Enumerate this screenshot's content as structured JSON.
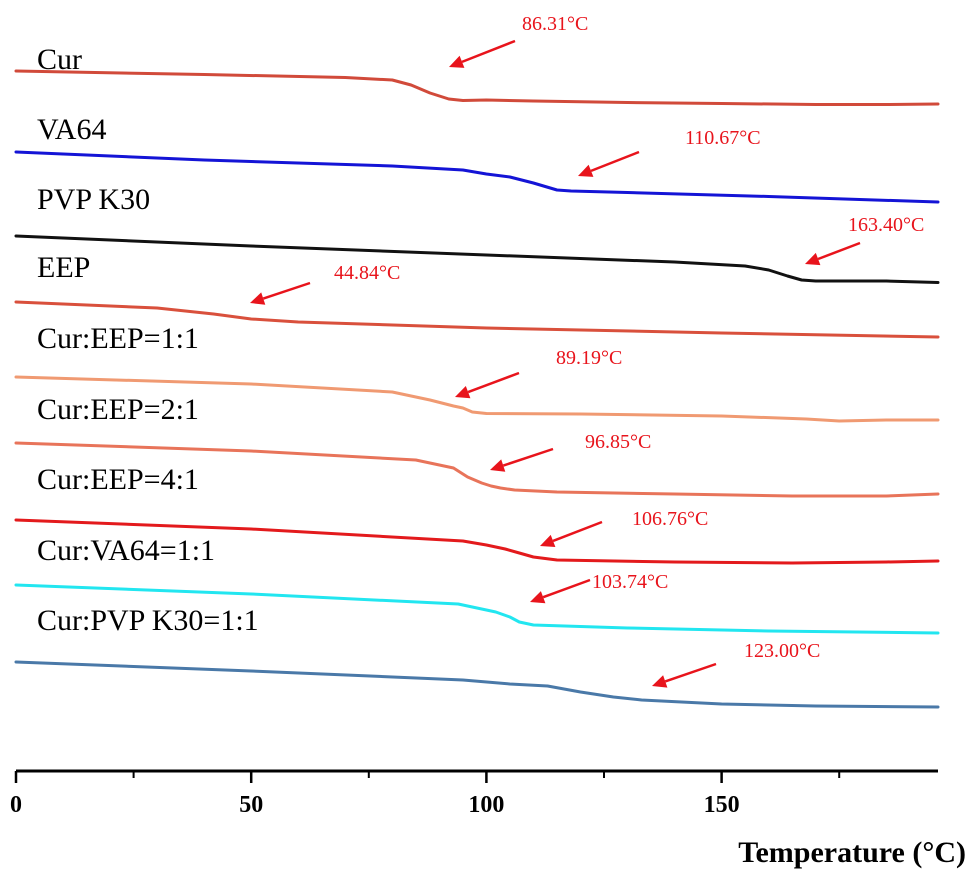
{
  "chart_data": {
    "type": "line",
    "title": "",
    "xlabel": "Temperature (°C)",
    "ylabel": "",
    "xlim": [
      0,
      196
    ],
    "x_ticks": [
      0,
      50,
      100,
      150
    ],
    "x_tick_labels": [
      "0",
      "50",
      "100",
      "150"
    ],
    "x_minor_ticks": [
      25,
      75,
      125,
      175
    ],
    "grid": false,
    "legend": "none",
    "arrow_color": "#e8141c",
    "tg_label_color": "#e8141c",
    "series": [
      {
        "name": "Cur",
        "color": "#d14a3a",
        "tg_label": "86.31°C",
        "points": [
          [
            0,
            71
          ],
          [
            40,
            74.5
          ],
          [
            70,
            77.5
          ],
          [
            80,
            80
          ],
          [
            84,
            85
          ],
          [
            88,
            93
          ],
          [
            92,
            99
          ],
          [
            95,
            100.5
          ],
          [
            100,
            100
          ],
          [
            110,
            101
          ],
          [
            130,
            102.5
          ],
          [
            150,
            103.5
          ],
          [
            170,
            104.5
          ],
          [
            185,
            104.5
          ],
          [
            196,
            104
          ]
        ]
      },
      {
        "name": "VA64",
        "color": "#1414d6",
        "tg_label": "110.67°C",
        "points": [
          [
            0,
            152
          ],
          [
            40,
            160
          ],
          [
            80,
            166
          ],
          [
            95,
            170
          ],
          [
            100,
            174
          ],
          [
            105,
            177
          ],
          [
            110,
            183
          ],
          [
            115,
            190
          ],
          [
            118,
            191
          ],
          [
            130,
            192.5
          ],
          [
            160,
            196.5
          ],
          [
            196,
            202
          ]
        ]
      },
      {
        "name": "PVP K30",
        "color": "#111111",
        "tg_label": "163.40°C",
        "points": [
          [
            0,
            236
          ],
          [
            50,
            246
          ],
          [
            100,
            255
          ],
          [
            140,
            262
          ],
          [
            155,
            266
          ],
          [
            160,
            270
          ],
          [
            164,
            276
          ],
          [
            167,
            280
          ],
          [
            170,
            281
          ],
          [
            185,
            281
          ],
          [
            196,
            282.5
          ]
        ]
      },
      {
        "name": "EEP",
        "color": "#d9503c",
        "tg_label": "44.84°C",
        "points": [
          [
            0,
            302
          ],
          [
            30,
            308
          ],
          [
            42,
            314
          ],
          [
            50,
            319
          ],
          [
            60,
            322
          ],
          [
            100,
            328
          ],
          [
            150,
            333
          ],
          [
            196,
            337
          ]
        ]
      },
      {
        "name": "Cur:EEP=1:1",
        "color": "#f09a72",
        "tg_label": "89.19°C",
        "points": [
          [
            0,
            377
          ],
          [
            50,
            384
          ],
          [
            80,
            392
          ],
          [
            88,
            400
          ],
          [
            93,
            406
          ],
          [
            95,
            408
          ],
          [
            97,
            412
          ],
          [
            100,
            413.5
          ],
          [
            120,
            414
          ],
          [
            150,
            416
          ],
          [
            168,
            419
          ],
          [
            175,
            421
          ],
          [
            185,
            420
          ],
          [
            196,
            420
          ]
        ]
      },
      {
        "name": "Cur:EEP=2:1",
        "color": "#e8745a",
        "tg_label": "96.85°C",
        "points": [
          [
            0,
            443
          ],
          [
            50,
            451
          ],
          [
            85,
            460
          ],
          [
            93,
            468
          ],
          [
            96,
            477
          ],
          [
            99,
            483
          ],
          [
            101,
            486
          ],
          [
            103,
            488
          ],
          [
            106,
            490
          ],
          [
            115,
            492
          ],
          [
            140,
            494
          ],
          [
            165,
            496
          ],
          [
            185,
            496
          ],
          [
            196,
            494
          ]
        ]
      },
      {
        "name": "Cur:EEP=4:1",
        "color": "#e31a1c",
        "tg_label": "106.76°C",
        "points": [
          [
            0,
            520
          ],
          [
            50,
            529
          ],
          [
            95,
            541
          ],
          [
            100,
            545
          ],
          [
            104,
            549
          ],
          [
            107,
            553
          ],
          [
            110,
            557
          ],
          [
            115,
            560
          ],
          [
            140,
            562
          ],
          [
            165,
            563
          ],
          [
            185,
            562
          ],
          [
            196,
            561
          ]
        ]
      },
      {
        "name": "Cur:VA64=1:1",
        "color": "#22e6f0",
        "tg_label": "103.74°C",
        "points": [
          [
            0,
            585
          ],
          [
            50,
            594
          ],
          [
            94,
            604
          ],
          [
            98,
            608
          ],
          [
            102,
            612
          ],
          [
            105,
            617
          ],
          [
            107,
            622
          ],
          [
            110,
            625
          ],
          [
            130,
            628
          ],
          [
            160,
            631
          ],
          [
            196,
            633
          ]
        ]
      },
      {
        "name": "Cur:PVP K30=1:1",
        "color": "#4a79a8",
        "tg_label": "123.00°C",
        "points": [
          [
            0,
            662
          ],
          [
            50,
            671
          ],
          [
            95,
            680
          ],
          [
            105,
            684
          ],
          [
            113,
            686
          ],
          [
            120,
            692
          ],
          [
            127,
            697
          ],
          [
            133,
            700
          ],
          [
            150,
            704
          ],
          [
            170,
            706
          ],
          [
            196,
            707
          ]
        ]
      }
    ],
    "arrows": [
      {
        "from": [
          515,
          41
        ],
        "to": [
          449,
          67
        ]
      },
      {
        "from": [
          639,
          152
        ],
        "to": [
          578,
          176
        ]
      },
      {
        "from": [
          860,
          243
        ],
        "to": [
          805,
          264
        ]
      },
      {
        "from": [
          310,
          283
        ],
        "to": [
          250,
          303
        ]
      },
      {
        "from": [
          519,
          373
        ],
        "to": [
          455,
          397
        ]
      },
      {
        "from": [
          553,
          449
        ],
        "to": [
          490,
          470
        ]
      },
      {
        "from": [
          602,
          522
        ],
        "to": [
          540,
          546
        ]
      },
      {
        "from": [
          590,
          580
        ],
        "to": [
          530,
          602
        ]
      },
      {
        "from": [
          716,
          664
        ],
        "to": [
          652,
          686
        ]
      }
    ]
  }
}
